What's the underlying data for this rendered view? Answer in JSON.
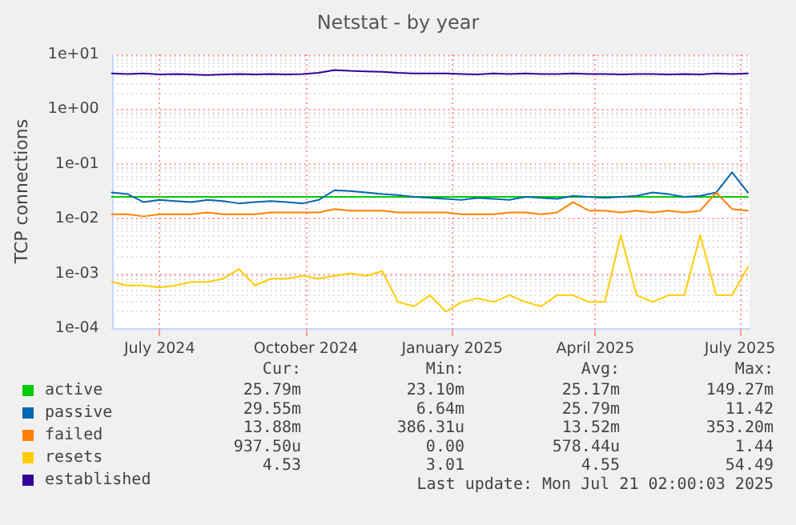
{
  "chart_data": {
    "type": "line",
    "title": "Netstat - by year",
    "ylabel": "TCP connections",
    "x": [
      "2024-06-15",
      "2024-06-25",
      "2024-07-05",
      "2024-07-15",
      "2024-07-25",
      "2024-08-04",
      "2024-08-14",
      "2024-08-24",
      "2024-09-03",
      "2024-09-13",
      "2024-09-23",
      "2024-10-03",
      "2024-10-13",
      "2024-10-23",
      "2024-11-02",
      "2024-11-12",
      "2024-11-22",
      "2024-12-02",
      "2024-12-12",
      "2024-12-22",
      "2025-01-01",
      "2025-01-11",
      "2025-01-21",
      "2025-01-31",
      "2025-02-10",
      "2025-02-20",
      "2025-03-02",
      "2025-03-12",
      "2025-03-22",
      "2025-04-01",
      "2025-04-11",
      "2025-04-21",
      "2025-05-01",
      "2025-05-11",
      "2025-05-21",
      "2025-05-31",
      "2025-06-10",
      "2025-06-20",
      "2025-06-30",
      "2025-07-10",
      "2025-07-20"
    ],
    "series": [
      {
        "name": "active",
        "color": "#00cc00",
        "values": [
          0.025,
          0.025,
          0.025,
          0.025,
          0.025,
          0.025,
          0.025,
          0.025,
          0.025,
          0.025,
          0.025,
          0.025,
          0.025,
          0.025,
          0.025,
          0.025,
          0.025,
          0.025,
          0.025,
          0.025,
          0.025,
          0.025,
          0.025,
          0.025,
          0.025,
          0.025,
          0.025,
          0.025,
          0.025,
          0.025,
          0.025,
          0.025,
          0.025,
          0.025,
          0.025,
          0.025,
          0.025,
          0.025,
          0.025,
          0.025,
          0.025
        ]
      },
      {
        "name": "passive",
        "color": "#0066b3",
        "values": [
          0.03,
          0.028,
          0.02,
          0.022,
          0.021,
          0.02,
          0.022,
          0.021,
          0.019,
          0.02,
          0.021,
          0.02,
          0.019,
          0.022,
          0.033,
          0.032,
          0.03,
          0.028,
          0.027,
          0.025,
          0.024,
          0.023,
          0.022,
          0.024,
          0.023,
          0.022,
          0.025,
          0.024,
          0.023,
          0.026,
          0.025,
          0.024,
          0.025,
          0.026,
          0.03,
          0.028,
          0.025,
          0.026,
          0.03,
          0.07,
          0.03
        ]
      },
      {
        "name": "failed",
        "color": "#ff8000",
        "values": [
          0.012,
          0.012,
          0.011,
          0.012,
          0.012,
          0.012,
          0.013,
          0.012,
          0.012,
          0.012,
          0.013,
          0.013,
          0.013,
          0.013,
          0.015,
          0.014,
          0.014,
          0.014,
          0.013,
          0.013,
          0.013,
          0.013,
          0.012,
          0.012,
          0.012,
          0.013,
          0.013,
          0.012,
          0.013,
          0.02,
          0.014,
          0.014,
          0.013,
          0.014,
          0.013,
          0.014,
          0.013,
          0.014,
          0.03,
          0.015,
          0.014
        ]
      },
      {
        "name": "resets",
        "color": "#ffcc00",
        "values": [
          0.0007,
          0.0006,
          0.0006,
          0.00055,
          0.0006,
          0.0007,
          0.0007,
          0.0008,
          0.0012,
          0.0006,
          0.0008,
          0.0008,
          0.0009,
          0.0008,
          0.0009,
          0.001,
          0.0009,
          0.0011,
          0.0003,
          0.00025,
          0.0004,
          0.0002,
          0.0003,
          0.00035,
          0.0003,
          0.0004,
          0.0003,
          0.00025,
          0.0004,
          0.0004,
          0.0003,
          0.0003,
          0.005,
          0.0004,
          0.0003,
          0.0004,
          0.0004,
          0.005,
          0.0004,
          0.0004,
          0.0013
        ]
      },
      {
        "name": "established",
        "color": "#330099",
        "values": [
          4.5,
          4.4,
          4.5,
          4.3,
          4.4,
          4.3,
          4.2,
          4.3,
          4.4,
          4.3,
          4.4,
          4.3,
          4.4,
          4.6,
          5.2,
          5.0,
          4.9,
          4.8,
          4.6,
          4.5,
          4.5,
          4.5,
          4.4,
          4.3,
          4.5,
          4.4,
          4.5,
          4.4,
          4.4,
          4.5,
          4.4,
          4.4,
          4.3,
          4.4,
          4.4,
          4.3,
          4.4,
          4.3,
          4.5,
          4.4,
          4.5
        ]
      }
    ],
    "xlim": [
      "2024-06-15",
      "2025-07-21"
    ],
    "xticks": [
      {
        "value": "2024-07-15",
        "label": "July 2024"
      },
      {
        "value": "2024-10-15",
        "label": "October 2024"
      },
      {
        "value": "2025-01-15",
        "label": "January 2025"
      },
      {
        "value": "2025-04-15",
        "label": "April 2025"
      },
      {
        "value": "2025-07-15",
        "label": "July 2025"
      }
    ],
    "ylim": [
      0.0001,
      10
    ],
    "yticks": [
      {
        "value": 0.0001,
        "label": "1e-04"
      },
      {
        "value": 0.001,
        "label": "1e-03"
      },
      {
        "value": 0.01,
        "label": "1e-02"
      },
      {
        "value": 0.1,
        "label": "1e-01"
      },
      {
        "value": 1,
        "label": "1e+00"
      },
      {
        "value": 10,
        "label": "1e+01"
      }
    ],
    "log": "y",
    "grid": true,
    "legend": "bottom",
    "marker": "none",
    "line_style": "solid",
    "annotations": [
      "Cur:",
      "Min:",
      "Avg:",
      "Max:",
      "25.79m",
      "23.10m",
      "25.17m",
      "149.27m",
      "29.55m",
      "6.64m",
      "25.79m",
      "11.42",
      "13.88m",
      "386.31u",
      "13.52m",
      "353.20m",
      "937.50u",
      "0.00",
      "578.44u",
      "1.44",
      "4.53",
      "3.01",
      "4.55",
      "54.49",
      "Last update: Mon Jul 21 02:00:03 2025"
    ]
  }
}
